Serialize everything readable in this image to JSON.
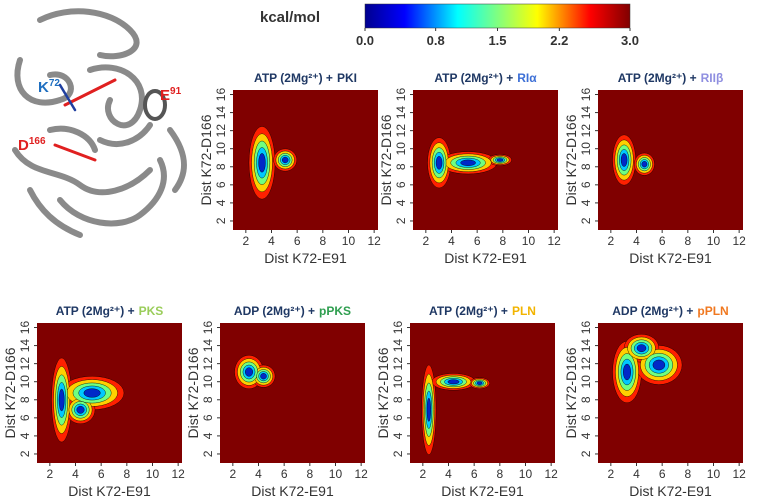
{
  "colorbar": {
    "label": "kcal/mol",
    "lim": [
      0,
      3
    ],
    "ticks": [
      {
        "value": 0,
        "label": "0.0"
      },
      0.8,
      1.5,
      2.2,
      {
        "value": 3,
        "label": "3.0"
      }
    ]
  },
  "structure": {
    "labels": [
      {
        "text": "K",
        "sup": "72",
        "color": "#1f6fc0"
      },
      {
        "text": "E",
        "sup": "91",
        "color": "#e02020"
      },
      {
        "text": "D",
        "sup": "166",
        "color": "#e02020"
      }
    ]
  },
  "chart_data": [
    {
      "type": "heatmap",
      "title": {
        "prefix": "ATP (2Mg²⁺) +",
        "ligand": "PKI",
        "ligand_color": "#1f3864"
      },
      "xlabel": "Dist K72-E91",
      "ylabel": "Dist K72-D166",
      "xlim": [
        1,
        12.3
      ],
      "ylim": [
        1,
        16.5
      ],
      "xticks": [
        2,
        4,
        6,
        8,
        10,
        12
      ],
      "yticks": [
        2,
        4,
        6,
        8,
        10,
        12,
        14,
        16
      ],
      "background_color": "#800000"
    },
    {
      "type": "heatmap",
      "title": {
        "prefix": "ATP (2Mg²⁺) +",
        "ligand": "RIα",
        "ligand_color": "#3c6fd6"
      },
      "xlabel": "Dist K72-E91",
      "ylabel": "Dist K72-D166",
      "xlim": [
        1,
        12.3
      ],
      "ylim": [
        1,
        16.5
      ],
      "xticks": [
        2,
        4,
        6,
        8,
        10,
        12
      ],
      "yticks": [
        2,
        4,
        6,
        8,
        10,
        12,
        14,
        16
      ],
      "background_color": "#800000"
    },
    {
      "type": "heatmap",
      "title": {
        "prefix": "ATP (2Mg²⁺) +",
        "ligand": "RIIβ",
        "ligand_color": "#8f8fe0"
      },
      "xlabel": "Dist K72-E91",
      "ylabel": "Dist K72-D166",
      "xlim": [
        1,
        12.3
      ],
      "ylim": [
        1,
        16.5
      ],
      "xticks": [
        2,
        4,
        6,
        8,
        10,
        12
      ],
      "yticks": [
        2,
        4,
        6,
        8,
        10,
        12,
        14,
        16
      ],
      "background_color": "#800000"
    },
    {
      "type": "heatmap",
      "title": {
        "prefix": "ATP (2Mg²⁺) +",
        "ligand": "PKS",
        "ligand_color": "#9acd5a"
      },
      "xlabel": "Dist K72-E91",
      "ylabel": "Dist K72-D166",
      "xlim": [
        1,
        12.3
      ],
      "ylim": [
        1,
        16.5
      ],
      "xticks": [
        2,
        4,
        6,
        8,
        10,
        12
      ],
      "yticks": [
        2,
        4,
        6,
        8,
        10,
        12,
        14,
        16
      ],
      "background_color": "#800000"
    },
    {
      "type": "heatmap",
      "title": {
        "prefix": "ADP (2Mg²⁺) +",
        "ligand": "pPKS",
        "ligand_color": "#2e9e4f"
      },
      "xlabel": "Dist K72-E91",
      "ylabel": "Dist K72-D166",
      "xlim": [
        1,
        12.3
      ],
      "ylim": [
        1,
        16.5
      ],
      "xticks": [
        2,
        4,
        6,
        8,
        10,
        12
      ],
      "yticks": [
        2,
        4,
        6,
        8,
        10,
        12,
        14,
        16
      ],
      "background_color": "#800000"
    },
    {
      "type": "heatmap",
      "title": {
        "prefix": "ATP (2Mg²⁺) +",
        "ligand": "PLN",
        "ligand_color": "#f2b400"
      },
      "xlabel": "Dist K72-E91",
      "ylabel": "Dist K72-D166",
      "xlim": [
        1,
        12.3
      ],
      "ylim": [
        1,
        16.5
      ],
      "xticks": [
        2,
        4,
        6,
        8,
        10,
        12
      ],
      "yticks": [
        2,
        4,
        6,
        8,
        10,
        12,
        14,
        16
      ],
      "background_color": "#800000"
    },
    {
      "type": "heatmap",
      "title": {
        "prefix": "ADP (2Mg²⁺) +",
        "ligand": "pPLN",
        "ligand_color": "#f07820"
      },
      "xlabel": "Dist K72-E91",
      "ylabel": "Dist K72-D166",
      "xlim": [
        1,
        12.3
      ],
      "ylim": [
        1,
        16.5
      ],
      "xticks": [
        2,
        4,
        6,
        8,
        10,
        12
      ],
      "yticks": [
        2,
        4,
        6,
        8,
        10,
        12,
        14,
        16
      ],
      "background_color": "#800000"
    }
  ]
}
